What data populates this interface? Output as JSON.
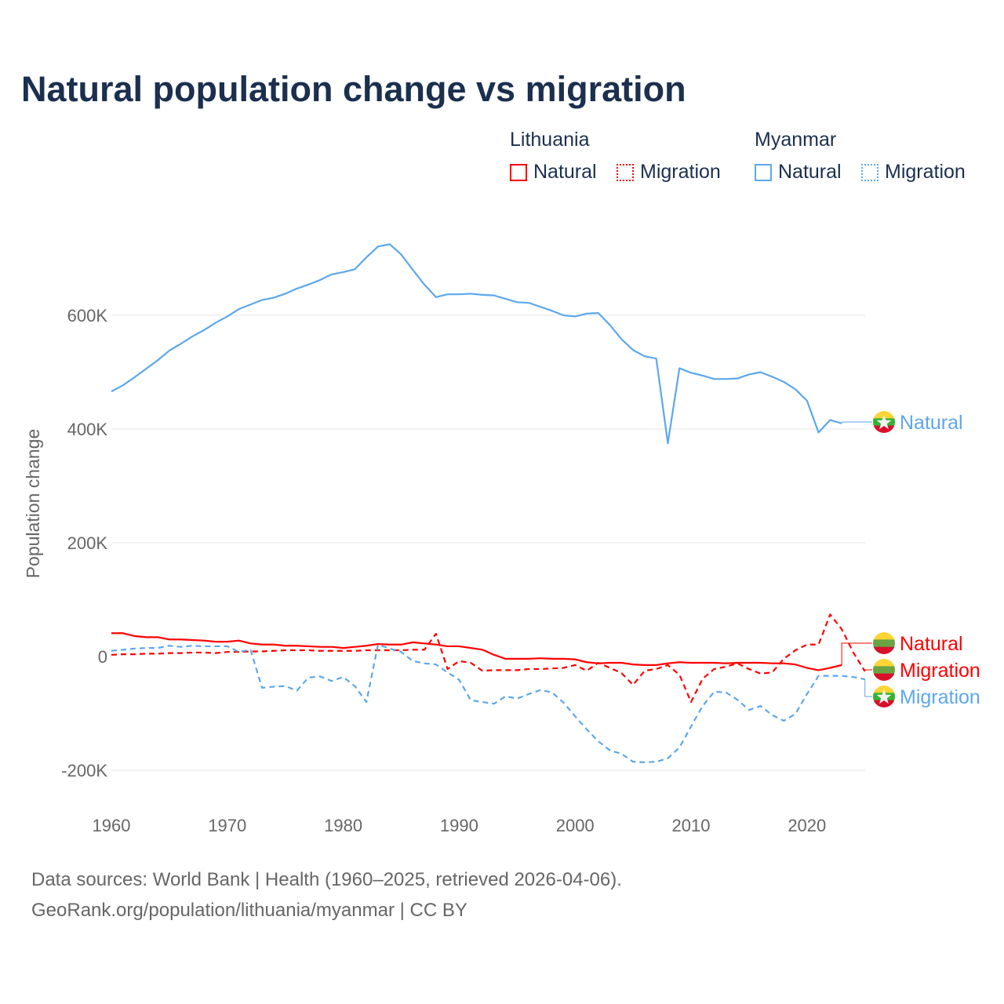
{
  "chart_data": {
    "type": "line",
    "title": "Natural population change vs migration",
    "ylabel": "Population change",
    "xlabel": "",
    "ylim": [
      -200000,
      750000
    ],
    "xlim": [
      1960,
      2025
    ],
    "yticks": [
      {
        "v": -200000,
        "label": "-200K"
      },
      {
        "v": 0,
        "label": "0"
      },
      {
        "v": 200000,
        "label": "200K"
      },
      {
        "v": 400000,
        "label": "400K"
      },
      {
        "v": 600000,
        "label": "600K"
      }
    ],
    "xticks": [
      1960,
      1970,
      1980,
      1990,
      2000,
      2010,
      2020
    ],
    "grid": true,
    "legend": {
      "groups": [
        {
          "name": "Lithuania",
          "items": [
            "Natural",
            "Migration"
          ]
        },
        {
          "name": "Myanmar",
          "items": [
            "Natural",
            "Migration"
          ]
        }
      ]
    },
    "x_start": 1960,
    "series": [
      {
        "name": "Myanmar Natural",
        "country": "Myanmar",
        "kind": "Natural",
        "label": "Natural",
        "color": "#5da7ec",
        "dash": false,
        "values": [
          466,
          477,
          491,
          506,
          521,
          538,
          550,
          563,
          574,
          587,
          598,
          611,
          619,
          627,
          631,
          638,
          647,
          654,
          662,
          672,
          676,
          681,
          702,
          721,
          725,
          707,
          680,
          654,
          632,
          637,
          637,
          638,
          636,
          635,
          629,
          623,
          622,
          615,
          608,
          600,
          598,
          603,
          604,
          583,
          558,
          539,
          528,
          524,
          375,
          507,
          499,
          494,
          488,
          488,
          489,
          496,
          500,
          492,
          483,
          470,
          450,
          394,
          416,
          410
        ]
      },
      {
        "name": "Lithuania Natural",
        "country": "Lithuania",
        "kind": "Natural",
        "label": "Natural",
        "color": "#ff0000",
        "dash": false,
        "values": [
          41,
          41,
          36,
          34,
          34,
          30,
          30,
          29,
          28,
          26,
          26,
          28,
          23,
          21,
          21,
          19,
          19,
          18,
          17,
          17,
          15,
          17,
          19,
          22,
          21,
          21,
          25,
          23,
          21,
          18,
          18,
          15,
          12,
          3,
          -4,
          -4,
          -4,
          -3,
          -4,
          -4,
          -5,
          -10,
          -12,
          -11,
          -11,
          -14,
          -15,
          -15,
          -12,
          -10,
          -11,
          -11,
          -11,
          -12,
          -11,
          -11,
          -11,
          -12,
          -12,
          -14,
          -20,
          -24,
          -20,
          -15
        ]
      },
      {
        "name": "Lithuania Migration",
        "country": "Lithuania",
        "kind": "Migration",
        "label": "Migration",
        "color": "#ff0000",
        "dash": true,
        "values": [
          3,
          4,
          4,
          5,
          5,
          6,
          6,
          7,
          7,
          6,
          8,
          8,
          9,
          9,
          10,
          11,
          11,
          11,
          10,
          10,
          10,
          10,
          11,
          11,
          11,
          11,
          12,
          12,
          40,
          -22,
          -8,
          -11,
          -25,
          -24,
          -24,
          -24,
          -22,
          -22,
          -21,
          -20,
          -15,
          -25,
          -11,
          -20,
          -29,
          -50,
          -25,
          -22,
          -15,
          -32,
          -80,
          -39,
          -22,
          -18,
          -12,
          -22,
          -30,
          -28,
          -4,
          11,
          21,
          21,
          74,
          48,
          7,
          -26
        ]
      },
      {
        "name": "Myanmar Migration",
        "country": "Myanmar",
        "kind": "Migration",
        "label": "Migration",
        "color": "#5da7ec",
        "dash": true,
        "values": [
          10,
          12,
          14,
          15,
          15,
          19,
          17,
          19,
          18,
          18,
          18,
          8,
          12,
          -55,
          -53,
          -52,
          -60,
          -37,
          -35,
          -43,
          -36,
          -52,
          -80,
          21,
          14,
          8,
          -8,
          -12,
          -14,
          -28,
          -41,
          -77,
          -80,
          -83,
          -70,
          -74,
          -66,
          -59,
          -63,
          -81,
          -105,
          -128,
          -149,
          -165,
          -171,
          -185,
          -186,
          -185,
          -179,
          -160,
          -123,
          -87,
          -62,
          -63,
          -76,
          -94,
          -87,
          -103,
          -113,
          -101,
          -66,
          -34,
          -34,
          -34,
          -36,
          -40
        ]
      }
    ],
    "value_unit": "thousands"
  },
  "legend": {
    "lithuania": "Lithuania",
    "myanmar": "Myanmar",
    "natural": "Natural",
    "migration": "Migration"
  },
  "footer": {
    "line1": "Data sources: World Bank | Health (1960–2025, retrieved 2026-04-06).",
    "line2": "GeoRank.org/population/lithuania/myanmar | CC BY"
  },
  "colors": {
    "lithuania": "#ff0000",
    "myanmar": "#5da7ec",
    "title": "#1b2f4e"
  }
}
